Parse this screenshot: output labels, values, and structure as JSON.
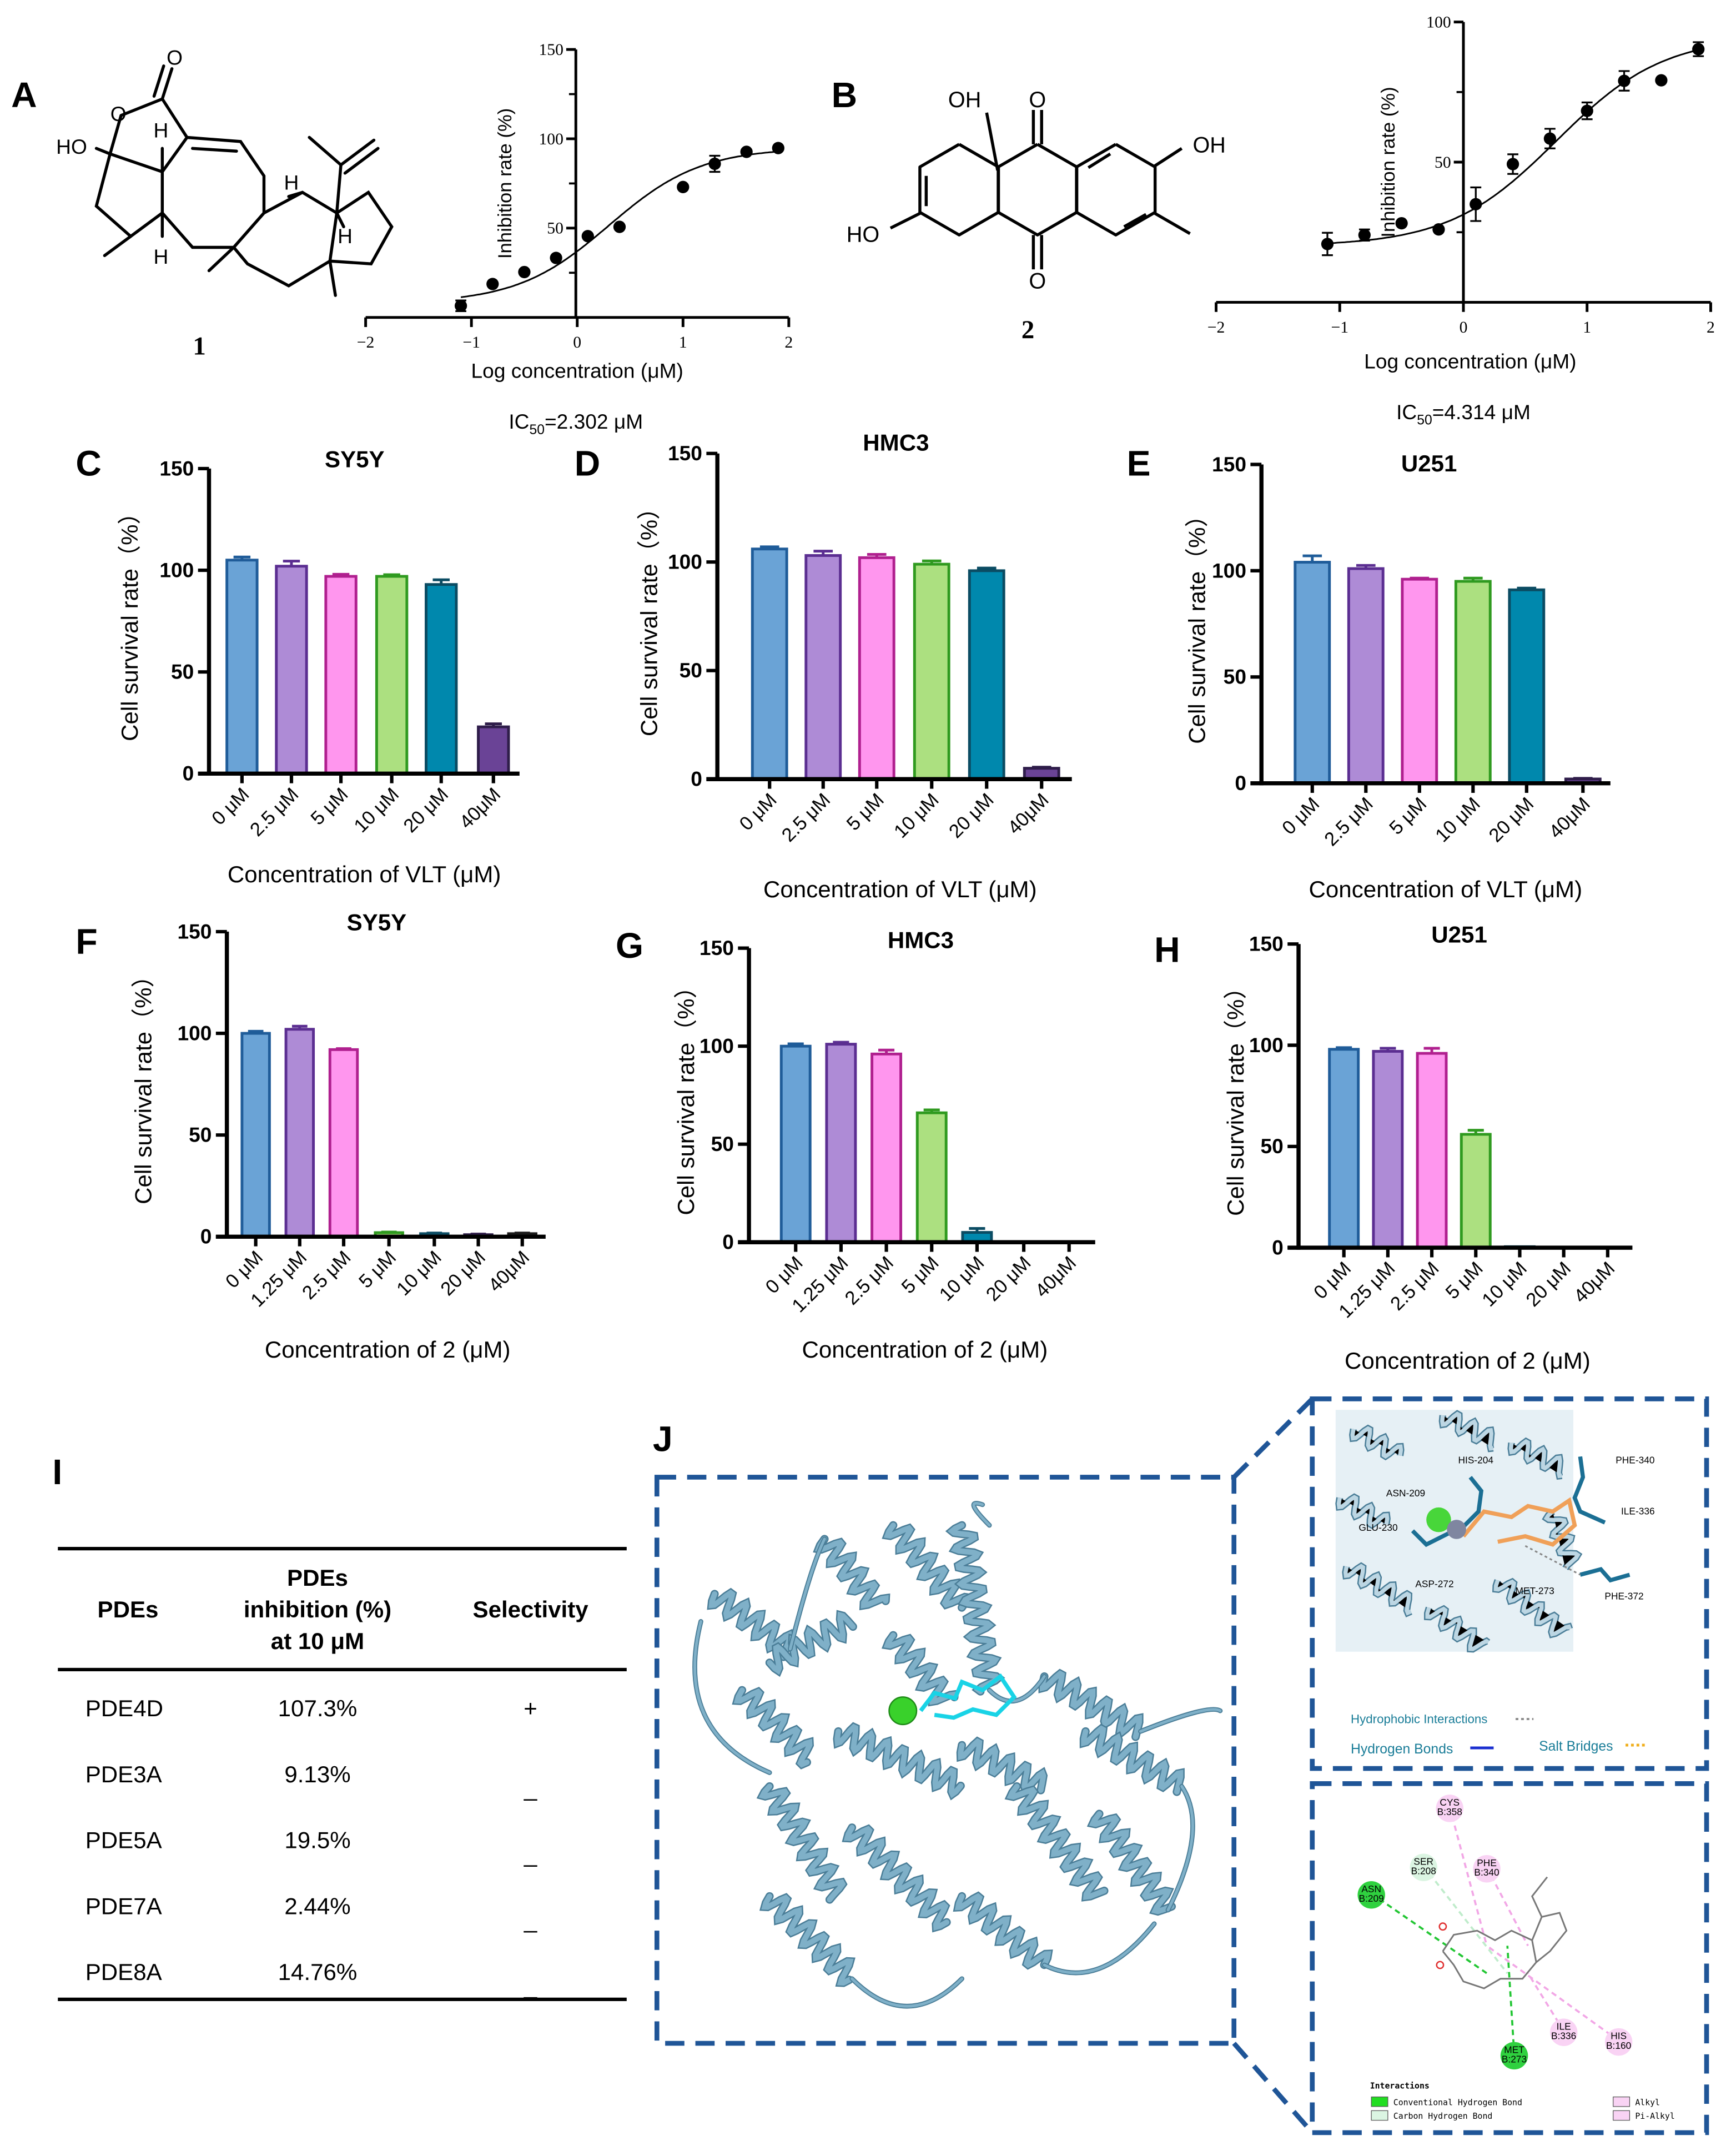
{
  "panels": {
    "A": {
      "label": "A",
      "compound_number": "1",
      "ic50": "IC50=2.302 μM",
      "ic50_prefix": "IC",
      "ic50_sub": "50",
      "ic50_rest": "=2.302 μM",
      "atom_labels": [
        "O",
        "O",
        "HO",
        "H",
        "H",
        "H",
        "H"
      ]
    },
    "B": {
      "label": "B",
      "compound_number": "2",
      "ic50": "IC50=4.314 μM",
      "ic50_prefix": "IC",
      "ic50_sub": "50",
      "ic50_rest": "=4.314 μM",
      "atom_labels": [
        "OH",
        "O",
        "OH",
        "HO",
        "O"
      ]
    },
    "C": {
      "label": "C"
    },
    "D": {
      "label": "D"
    },
    "E": {
      "label": "E"
    },
    "F": {
      "label": "F"
    },
    "G": {
      "label": "G"
    },
    "H": {
      "label": "H"
    },
    "I": {
      "label": "I"
    },
    "J": {
      "label": "J"
    }
  },
  "chart_data": [
    {
      "panel": "A",
      "type": "scatter",
      "xlabel": "Log concentration (μM)",
      "ylabel": "Inhibition rate (%)",
      "xlim": [
        -2,
        2
      ],
      "ylim": [
        0,
        150
      ],
      "xticks": [
        -2,
        -1,
        0,
        1,
        2
      ],
      "yticks_labeled": [
        50,
        100,
        150
      ],
      "yticks_minor": [
        25,
        75,
        125
      ],
      "x": [
        -1.1,
        -0.8,
        -0.5,
        -0.2,
        0.1,
        0.4,
        1.0,
        1.3,
        1.6,
        1.9
      ],
      "y": [
        6.5,
        18.7,
        25.4,
        33.3,
        45.5,
        50.7,
        73,
        86,
        92.7,
        94.8
      ],
      "errors": [
        3,
        0,
        0,
        0,
        0,
        0,
        0,
        4.5,
        0,
        0
      ],
      "fit": "sigmoidal dose-response curve",
      "marker_color": "#000000"
    },
    {
      "panel": "B",
      "type": "scatter",
      "xlabel": "Log concentration (μM)",
      "ylabel": "Inhibition rate (%)",
      "xlim": [
        -2,
        2
      ],
      "ylim": [
        0,
        100
      ],
      "xticks": [
        -2,
        -1,
        0,
        1,
        2
      ],
      "yticks_labeled": [
        50,
        100
      ],
      "yticks_minor": [
        25,
        75
      ],
      "x": [
        -1.1,
        -0.8,
        -0.5,
        -0.2,
        0.1,
        0.4,
        0.7,
        1.0,
        1.3,
        1.6,
        1.9
      ],
      "y": [
        20.8,
        24,
        28.2,
        26,
        35,
        49.3,
        58.4,
        68.3,
        79,
        79.2,
        90.3
      ],
      "errors": [
        4,
        2,
        0,
        0,
        6,
        3.5,
        3.5,
        3,
        3.5,
        0,
        2.5
      ],
      "fit": "sigmoidal dose-response curve",
      "marker_color": "#000000"
    },
    {
      "panel": "C",
      "type": "bar",
      "title": "SY5Y",
      "ylabel": "Cell survival rate（%）",
      "xlabel": "Concentration of VLT (μM)",
      "ylim": [
        0,
        150
      ],
      "yticks": [
        0,
        50,
        100,
        150
      ],
      "categories": [
        "0 μM",
        "2.5 μM",
        "5 μM",
        "10 μM",
        "20 μM",
        "40μM"
      ],
      "values": [
        105,
        102,
        97,
        97,
        93,
        23
      ],
      "errors": [
        1.5,
        2.5,
        1,
        0.8,
        2.3,
        1.5
      ]
    },
    {
      "panel": "D",
      "type": "bar",
      "title": "HMC3",
      "ylabel": "Cell survival rate（%）",
      "xlabel": "Concentration of VLT (μM)",
      "ylim": [
        0,
        150
      ],
      "yticks": [
        0,
        50,
        100,
        150
      ],
      "categories": [
        "0 μM",
        "2.5 μM",
        "5 μM",
        "10 μM",
        "20 μM",
        "40μM"
      ],
      "values": [
        106,
        103,
        102,
        99,
        96,
        5
      ],
      "errors": [
        1,
        2,
        1.5,
        1.5,
        1.2,
        0.5
      ]
    },
    {
      "panel": "E",
      "type": "bar",
      "title": "U251",
      "ylabel": "Cell survival rate（%）",
      "xlabel": "Concentration of VLT (μM)",
      "ylim": [
        0,
        150
      ],
      "yticks": [
        0,
        50,
        100,
        150
      ],
      "categories": [
        "0 μM",
        "2.5 μM",
        "5 μM",
        "10 μM",
        "20 μM",
        "40μM"
      ],
      "values": [
        104,
        101,
        96,
        95,
        91,
        2
      ],
      "errors": [
        3,
        1.5,
        0.5,
        1.5,
        0.8,
        0.3
      ]
    },
    {
      "panel": "F",
      "type": "bar",
      "title": "SY5Y",
      "ylabel": "Cell survival rate（%）",
      "xlabel": "Concentration of 2 (μM)",
      "ylim": [
        0,
        150
      ],
      "yticks": [
        0,
        50,
        100,
        150
      ],
      "categories": [
        "0 μM",
        "1.25 μM",
        "2.5 μM",
        "5 μM",
        "10 μM",
        "20 μM",
        "40μM"
      ],
      "values": [
        100,
        102,
        92,
        2,
        1.5,
        1,
        1.5
      ],
      "errors": [
        1,
        1.5,
        0.5,
        0.3,
        0.3,
        0.3,
        0.3
      ]
    },
    {
      "panel": "G",
      "type": "bar",
      "title": "HMC3",
      "ylabel": "Cell survival rate（%）",
      "xlabel": "Concentration of 2 (μM)",
      "ylim": [
        0,
        150
      ],
      "yticks": [
        0,
        50,
        100,
        150
      ],
      "categories": [
        "0 μM",
        "1.25 μM",
        "2.5 μM",
        "5 μM",
        "10 μM",
        "20 μM",
        "40μM"
      ],
      "values": [
        100,
        101,
        96,
        66,
        5,
        0,
        0
      ],
      "errors": [
        1.2,
        1,
        2,
        1.5,
        2,
        0,
        0
      ]
    },
    {
      "panel": "H",
      "type": "bar",
      "title": "U251",
      "ylabel": "Cell survival rate（%）",
      "xlabel": "Concentration of 2 (μM)",
      "ylim": [
        0,
        150
      ],
      "yticks": [
        0,
        50,
        100,
        150
      ],
      "categories": [
        "0 μM",
        "1.25 μM",
        "2.5 μM",
        "5 μM",
        "10 μM",
        "20 μM",
        "40μM"
      ],
      "values": [
        98,
        97,
        96,
        56,
        0.5,
        0,
        0.3
      ],
      "errors": [
        0.8,
        1.5,
        2.5,
        2,
        0,
        0,
        0
      ]
    }
  ],
  "bar_colors": [
    {
      "fill": "#6aa3d6",
      "stroke": "#1f5c99"
    },
    {
      "fill": "#ae8bd6",
      "stroke": "#5b2e91"
    },
    {
      "fill": "#ff96ee",
      "stroke": "#b0208f"
    },
    {
      "fill": "#ace080",
      "stroke": "#2f9a1f"
    },
    {
      "fill": "#0088ad",
      "stroke": "#0b4c63"
    },
    {
      "fill": "#6a4396",
      "stroke": "#2f1d4a"
    },
    {
      "fill": "#3a3a3a",
      "stroke": "#1a1a1a"
    }
  ],
  "table_I": {
    "headers": [
      "PDEs",
      "PDEs",
      "inhibition (%)",
      "at 10 μM",
      "Selectivity"
    ],
    "rows": [
      {
        "pde": "PDE4D",
        "inhibition": "107.3%",
        "selectivity": "+"
      },
      {
        "pde": "PDE3A",
        "inhibition": "9.13%",
        "selectivity": "_"
      },
      {
        "pde": "PDE5A",
        "inhibition": "19.5%",
        "selectivity": "_"
      },
      {
        "pde": "PDE7A",
        "inhibition": "2.44%",
        "selectivity": "_"
      },
      {
        "pde": "PDE8A",
        "inhibition": "14.76%",
        "selectivity": "_"
      }
    ]
  },
  "panel_J": {
    "frame_color": "#1f5597",
    "protein_color": "#7fb0c8",
    "residues_3d": [
      "HIS-204",
      "PHE-340",
      "ASN-209",
      "ILE-336",
      "GLU-230",
      "ASP-272",
      "MET-273",
      "PHE-372"
    ],
    "legend_3d": {
      "hydrophobic": "Hydrophobic Interactions",
      "hbond": "Hydrogen Bonds",
      "salt": "Salt Bridges"
    },
    "residues_2d": [
      {
        "name": "CYS",
        "id": "B:358",
        "kind": "alkyl"
      },
      {
        "name": "SER",
        "id": "B:208",
        "kind": "carbon-hbond"
      },
      {
        "name": "PHE",
        "id": "B:340",
        "kind": "alkyl"
      },
      {
        "name": "ASN",
        "id": "B:209",
        "kind": "hbond"
      },
      {
        "name": "MET",
        "id": "B:273",
        "kind": "hbond"
      },
      {
        "name": "ILE",
        "id": "B:336",
        "kind": "alkyl"
      },
      {
        "name": "HIS",
        "id": "B:160",
        "kind": "alkyl"
      }
    ],
    "legend_2d": {
      "title": "Interactions",
      "items": [
        "Conventional Hydrogen Bond",
        "Carbon Hydrogen Bond",
        "Alkyl",
        "Pi-Alkyl"
      ]
    }
  }
}
